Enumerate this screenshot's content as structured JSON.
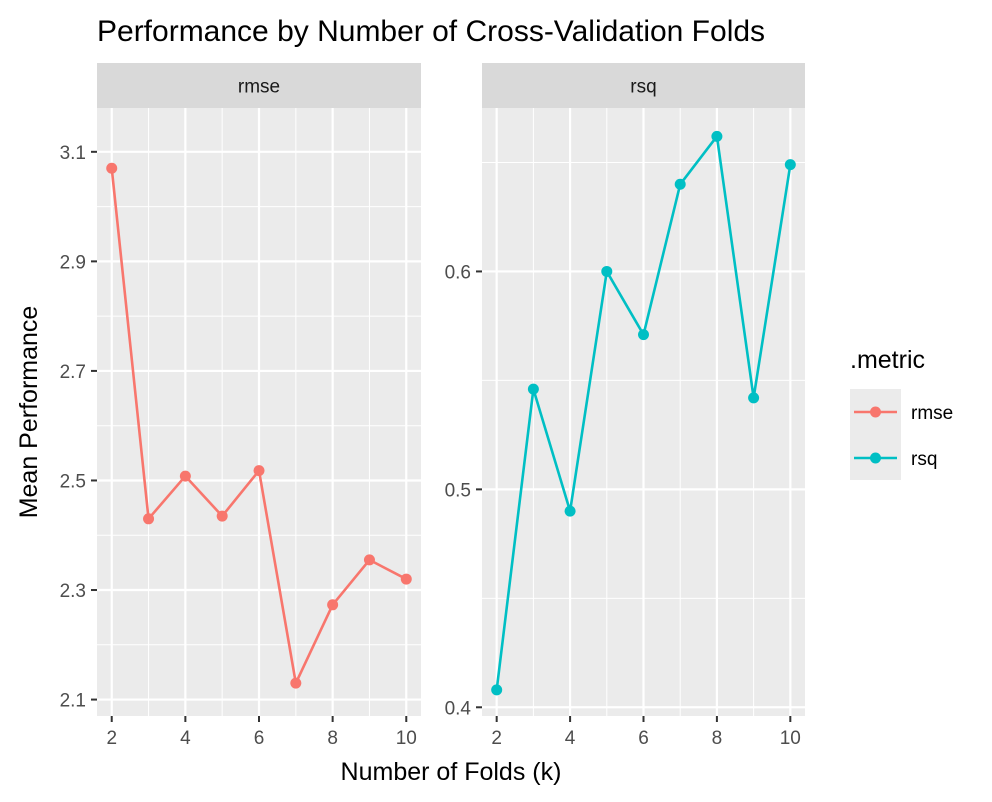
{
  "chart_data": {
    "type": "line",
    "title": "Performance by Number of Cross-Validation Folds",
    "xlabel": "Number of Folds (k)",
    "ylabel": "Mean Performance",
    "x": [
      2,
      3,
      4,
      5,
      6,
      7,
      8,
      9,
      10
    ],
    "legend": {
      "title": ".metric",
      "position": "right"
    },
    "grid": true,
    "panels": [
      {
        "strip": "rmse",
        "series": "rmse",
        "color": "#F8766D",
        "values": [
          3.07,
          2.43,
          2.508,
          2.435,
          2.518,
          2.13,
          2.273,
          2.355,
          2.32
        ],
        "ylim": [
          2.07,
          3.18
        ],
        "xlim": [
          1.6,
          10.4
        ],
        "yticks": [
          2.1,
          2.3,
          2.5,
          2.7,
          2.9,
          3.1
        ],
        "ytick_labels": [
          "2.1",
          "2.3",
          "2.5",
          "2.7",
          "2.9",
          "3.1"
        ],
        "xticks": [
          2,
          4,
          6,
          8,
          10
        ],
        "xtick_labels": [
          "2",
          "4",
          "6",
          "8",
          "10"
        ]
      },
      {
        "strip": "rsq",
        "series": "rsq",
        "color": "#00BFC4",
        "values": [
          0.408,
          0.546,
          0.49,
          0.6,
          0.571,
          0.64,
          0.662,
          0.542,
          0.649
        ],
        "ylim": [
          0.396,
          0.675
        ],
        "xlim": [
          1.6,
          10.4
        ],
        "yticks": [
          0.4,
          0.5,
          0.6
        ],
        "ytick_labels": [
          "0.4",
          "0.5",
          "0.6"
        ],
        "xticks": [
          2,
          4,
          6,
          8,
          10
        ],
        "xtick_labels": [
          "2",
          "4",
          "6",
          "8",
          "10"
        ]
      }
    ]
  }
}
